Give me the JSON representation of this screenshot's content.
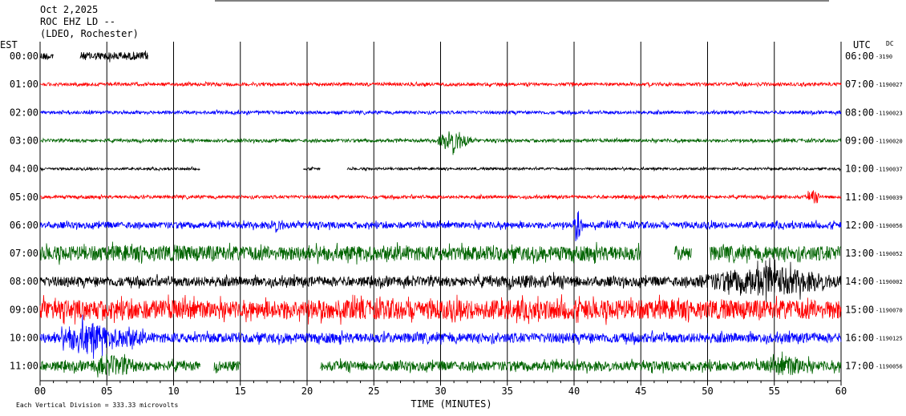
{
  "header": {
    "line1": "Oct 2,2025",
    "line2": "ROC EHZ LD --",
    "line3": "(LDEO, Rochester)"
  },
  "axes": {
    "left_title": "EST",
    "right_title": "UTC",
    "dc_title": "DC",
    "xlabel": "TIME (MINUTES)",
    "footer": "Each Vertical Division = 333.33 microvolts"
  },
  "chart_data": {
    "type": "line",
    "xlim": [
      0,
      60
    ],
    "xticks": [
      "00",
      "05",
      "10",
      "15",
      "20",
      "25",
      "30",
      "35",
      "40",
      "45",
      "50",
      "55",
      "60"
    ],
    "grid": "vertical lines every 5 minutes",
    "series": [
      {
        "est": "00:00",
        "utc": "06:00",
        "dc": "-3190",
        "color": "#000000",
        "amp": 5,
        "segments": [
          [
            0,
            1.0
          ],
          [
            3.0,
            8.1
          ]
        ],
        "events": []
      },
      {
        "est": "01:00",
        "utc": "07:00",
        "dc": "-1190027",
        "color": "#ff0000",
        "amp": 2,
        "segments": [
          [
            0,
            60
          ]
        ],
        "events": []
      },
      {
        "est": "02:00",
        "utc": "08:00",
        "dc": "-1190023",
        "color": "#0000ff",
        "amp": 2,
        "segments": [
          [
            0,
            60
          ]
        ],
        "events": []
      },
      {
        "est": "03:00",
        "utc": "09:00",
        "dc": "-1190020",
        "color": "#006400",
        "amp": 2,
        "segments": [
          [
            0,
            60
          ]
        ],
        "events": [
          [
            31.0,
            1.5,
            16
          ]
        ]
      },
      {
        "est": "04:00",
        "utc": "10:00",
        "dc": "-1190037",
        "color": "#000000",
        "amp": 1.5,
        "segments": [
          [
            0,
            12.0
          ],
          [
            19.7,
            21.0
          ],
          [
            23.0,
            60
          ]
        ],
        "events": []
      },
      {
        "est": "05:00",
        "utc": "11:00",
        "dc": "-1190039",
        "color": "#ff0000",
        "amp": 2,
        "segments": [
          [
            0,
            60
          ]
        ],
        "events": [
          [
            57.9,
            0.6,
            9
          ]
        ]
      },
      {
        "est": "06:00",
        "utc": "12:00",
        "dc": "-1190056",
        "color": "#0000ff",
        "amp": 4,
        "segments": [
          [
            0,
            60
          ]
        ],
        "events": [
          [
            17.8,
            0.8,
            9
          ],
          [
            40.3,
            0.4,
            22
          ]
        ]
      },
      {
        "est": "07:00",
        "utc": "13:00",
        "dc": "-1190052",
        "color": "#006400",
        "amp": 9,
        "segments": [
          [
            0,
            45.0
          ],
          [
            47.5,
            48.8
          ],
          [
            50.2,
            60
          ]
        ],
        "events": [
          [
            9.0,
            6.0,
            10
          ]
        ]
      },
      {
        "est": "08:00",
        "utc": "14:00",
        "dc": "-1190002",
        "color": "#000000",
        "amp": 6,
        "segments": [
          [
            0,
            60
          ]
        ],
        "events": [
          [
            37.0,
            5.0,
            8
          ],
          [
            54.5,
            6.0,
            20
          ]
        ]
      },
      {
        "est": "09:00",
        "utc": "15:00",
        "dc": "-1190070",
        "color": "#ff0000",
        "amp": 12,
        "segments": [
          [
            0,
            60
          ]
        ],
        "events": [
          [
            15.0,
            4.0,
            10
          ]
        ]
      },
      {
        "est": "10:00",
        "utc": "16:00",
        "dc": "-1190125",
        "color": "#0000ff",
        "amp": 6,
        "segments": [
          [
            0,
            60
          ]
        ],
        "events": [
          [
            3.5,
            2.5,
            22
          ],
          [
            6.5,
            1.5,
            14
          ]
        ]
      },
      {
        "est": "11:00",
        "utc": "17:00",
        "dc": "-1190056",
        "color": "#006400",
        "amp": 6,
        "segments": [
          [
            0,
            12.0
          ],
          [
            13.0,
            15.0
          ],
          [
            21.0,
            60
          ]
        ],
        "events": [
          [
            5.5,
            2.0,
            14
          ],
          [
            56.0,
            2.0,
            14
          ]
        ]
      }
    ]
  }
}
